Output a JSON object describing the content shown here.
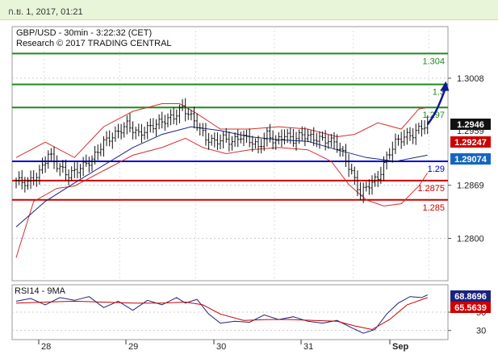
{
  "header": {
    "date_text": "ก.ย. 1, 2017, 01:21"
  },
  "chart_data": [
    {
      "type": "candlestick",
      "title": "GBP/USD - 30min - 3:22:32 (CET)",
      "subtitle": "Research © 2017 TRADING CENTRAL",
      "ylim": [
        1.2745,
        1.3075
      ],
      "x_ticks": [
        "28",
        "29",
        "30",
        "31",
        "Sep"
      ],
      "y_ticks": [
        {
          "value": 1.3008,
          "label": "1.3008"
        },
        {
          "value": 1.2869,
          "label": "1.2869"
        },
        {
          "value": 1.28,
          "label": "1.2800"
        }
      ],
      "levels": [
        {
          "value": 1.304,
          "label": "1.304",
          "color": "#1f8a1f"
        },
        {
          "value": 1.3,
          "label": "1.3",
          "color": "#1f8a1f"
        },
        {
          "value": 1.297,
          "label": "1.297",
          "color": "#1f8a1f"
        },
        {
          "value": 1.29,
          "label": "1.29",
          "color": "#0000cc"
        },
        {
          "value": 1.2875,
          "label": "1.2875",
          "color": "#cc0000"
        },
        {
          "value": 1.285,
          "label": "1.285",
          "color": "#cc0000"
        }
      ],
      "tags": [
        {
          "value": 1.2946,
          "label": "1.2946",
          "color": "#111111"
        },
        {
          "value": 1.2959,
          "label": "1.2959",
          "color": "#ffffff"
        },
        {
          "value": 1.29247,
          "label": "1.29247",
          "color": "#cc0000"
        },
        {
          "value": 1.29074,
          "label": "1.29074",
          "color": "#1565c0"
        }
      ],
      "close_path": [
        [
          0,
          1.2875
        ],
        [
          4,
          1.2872
        ],
        [
          8,
          1.2885
        ],
        [
          11,
          1.291
        ],
        [
          14,
          1.2895
        ],
        [
          18,
          1.2882
        ],
        [
          22,
          1.2892
        ],
        [
          26,
          1.2902
        ],
        [
          30,
          1.2925
        ],
        [
          34,
          1.2935
        ],
        [
          38,
          1.2948
        ],
        [
          42,
          1.2935
        ],
        [
          46,
          1.2945
        ],
        [
          50,
          1.2952
        ],
        [
          54,
          1.2958
        ],
        [
          57,
          1.297
        ],
        [
          59,
          1.2962
        ],
        [
          62,
          1.2948
        ],
        [
          65,
          1.293
        ],
        [
          68,
          1.2925
        ],
        [
          71,
          1.293
        ],
        [
          74,
          1.2925
        ],
        [
          77,
          1.2933
        ],
        [
          80,
          1.2928
        ],
        [
          83,
          1.2918
        ],
        [
          86,
          1.2935
        ],
        [
          89,
          1.2925
        ],
        [
          92,
          1.2935
        ],
        [
          95,
          1.2928
        ],
        [
          98,
          1.2935
        ],
        [
          102,
          1.293
        ],
        [
          106,
          1.2928
        ],
        [
          109,
          1.2925
        ],
        [
          112,
          1.291
        ],
        [
          115,
          1.2885
        ],
        [
          118,
          1.2858
        ],
        [
          121,
          1.287
        ],
        [
          124,
          1.2878
        ],
        [
          127,
          1.2905
        ],
        [
          130,
          1.2925
        ],
        [
          133,
          1.2932
        ],
        [
          136,
          1.2935
        ],
        [
          139,
          1.2945
        ],
        [
          141,
          1.2948
        ]
      ],
      "bollinger_upper": [
        [
          0,
          1.2905
        ],
        [
          10,
          1.2925
        ],
        [
          20,
          1.2905
        ],
        [
          30,
          1.2945
        ],
        [
          40,
          1.2965
        ],
        [
          50,
          1.2975
        ],
        [
          56,
          1.2975
        ],
        [
          62,
          1.2962
        ],
        [
          70,
          1.2942
        ],
        [
          80,
          1.2942
        ],
        [
          90,
          1.2945
        ],
        [
          100,
          1.2942
        ],
        [
          110,
          1.2932
        ],
        [
          116,
          1.2935
        ],
        [
          124,
          1.295
        ],
        [
          132,
          1.2942
        ],
        [
          138,
          1.2968
        ],
        [
          141,
          1.297
        ]
      ],
      "bollinger_lower": [
        [
          0,
          1.2775
        ],
        [
          6,
          1.2848
        ],
        [
          14,
          1.2865
        ],
        [
          20,
          1.2868
        ],
        [
          30,
          1.2888
        ],
        [
          40,
          1.2908
        ],
        [
          50,
          1.2918
        ],
        [
          58,
          1.293
        ],
        [
          64,
          1.2918
        ],
        [
          72,
          1.291
        ],
        [
          80,
          1.2915
        ],
        [
          90,
          1.2918
        ],
        [
          100,
          1.2915
        ],
        [
          108,
          1.29
        ],
        [
          114,
          1.287
        ],
        [
          120,
          1.285
        ],
        [
          126,
          1.2842
        ],
        [
          132,
          1.2845
        ],
        [
          138,
          1.2868
        ],
        [
          141,
          1.2885
        ]
      ],
      "moving_average": [
        [
          0,
          1.2815
        ],
        [
          10,
          1.2848
        ],
        [
          20,
          1.2872
        ],
        [
          30,
          1.2895
        ],
        [
          40,
          1.2918
        ],
        [
          50,
          1.2935
        ],
        [
          60,
          1.2945
        ],
        [
          70,
          1.294
        ],
        [
          80,
          1.2932
        ],
        [
          90,
          1.2928
        ],
        [
          100,
          1.2926
        ],
        [
          110,
          1.2915
        ],
        [
          120,
          1.2905
        ],
        [
          130,
          1.29
        ],
        [
          141,
          1.2908
        ]
      ],
      "forecast_arrow": {
        "from": [
          141,
          1.2948
        ],
        "to": [
          147,
          1.3002
        ]
      },
      "rsi": {
        "label": "RSI14 - 9MA",
        "ylim": [
          20,
          80
        ],
        "y_ticks": [
          {
            "value": 50,
            "label": "50"
          },
          {
            "value": 30,
            "label": "30"
          }
        ],
        "tags": [
          {
            "value": 68.8696,
            "label": "68.8696",
            "color": "#1a237e"
          },
          {
            "value": 65.5639,
            "label": "65.5639",
            "color": "#cc0000"
          }
        ],
        "rsi_values": [
          [
            0,
            62
          ],
          [
            5,
            65
          ],
          [
            10,
            58
          ],
          [
            15,
            66
          ],
          [
            20,
            63
          ],
          [
            25,
            67
          ],
          [
            30,
            55
          ],
          [
            35,
            62
          ],
          [
            40,
            52
          ],
          [
            45,
            63
          ],
          [
            50,
            58
          ],
          [
            55,
            66
          ],
          [
            58,
            60
          ],
          [
            62,
            64
          ],
          [
            66,
            48
          ],
          [
            70,
            38
          ],
          [
            75,
            40
          ],
          [
            80,
            39
          ],
          [
            85,
            47
          ],
          [
            90,
            42
          ],
          [
            95,
            45
          ],
          [
            100,
            40
          ],
          [
            105,
            38
          ],
          [
            110,
            41
          ],
          [
            115,
            33
          ],
          [
            119,
            27
          ],
          [
            123,
            31
          ],
          [
            127,
            48
          ],
          [
            131,
            60
          ],
          [
            135,
            67
          ],
          [
            139,
            66
          ],
          [
            141,
            69
          ]
        ],
        "ma_values": [
          [
            0,
            60
          ],
          [
            10,
            61
          ],
          [
            20,
            62
          ],
          [
            30,
            61
          ],
          [
            40,
            60
          ],
          [
            50,
            60
          ],
          [
            58,
            61
          ],
          [
            64,
            58
          ],
          [
            70,
            48
          ],
          [
            78,
            41
          ],
          [
            86,
            42
          ],
          [
            94,
            42
          ],
          [
            102,
            41
          ],
          [
            110,
            40
          ],
          [
            116,
            35
          ],
          [
            122,
            31
          ],
          [
            128,
            42
          ],
          [
            134,
            58
          ],
          [
            141,
            66
          ]
        ]
      }
    }
  ]
}
